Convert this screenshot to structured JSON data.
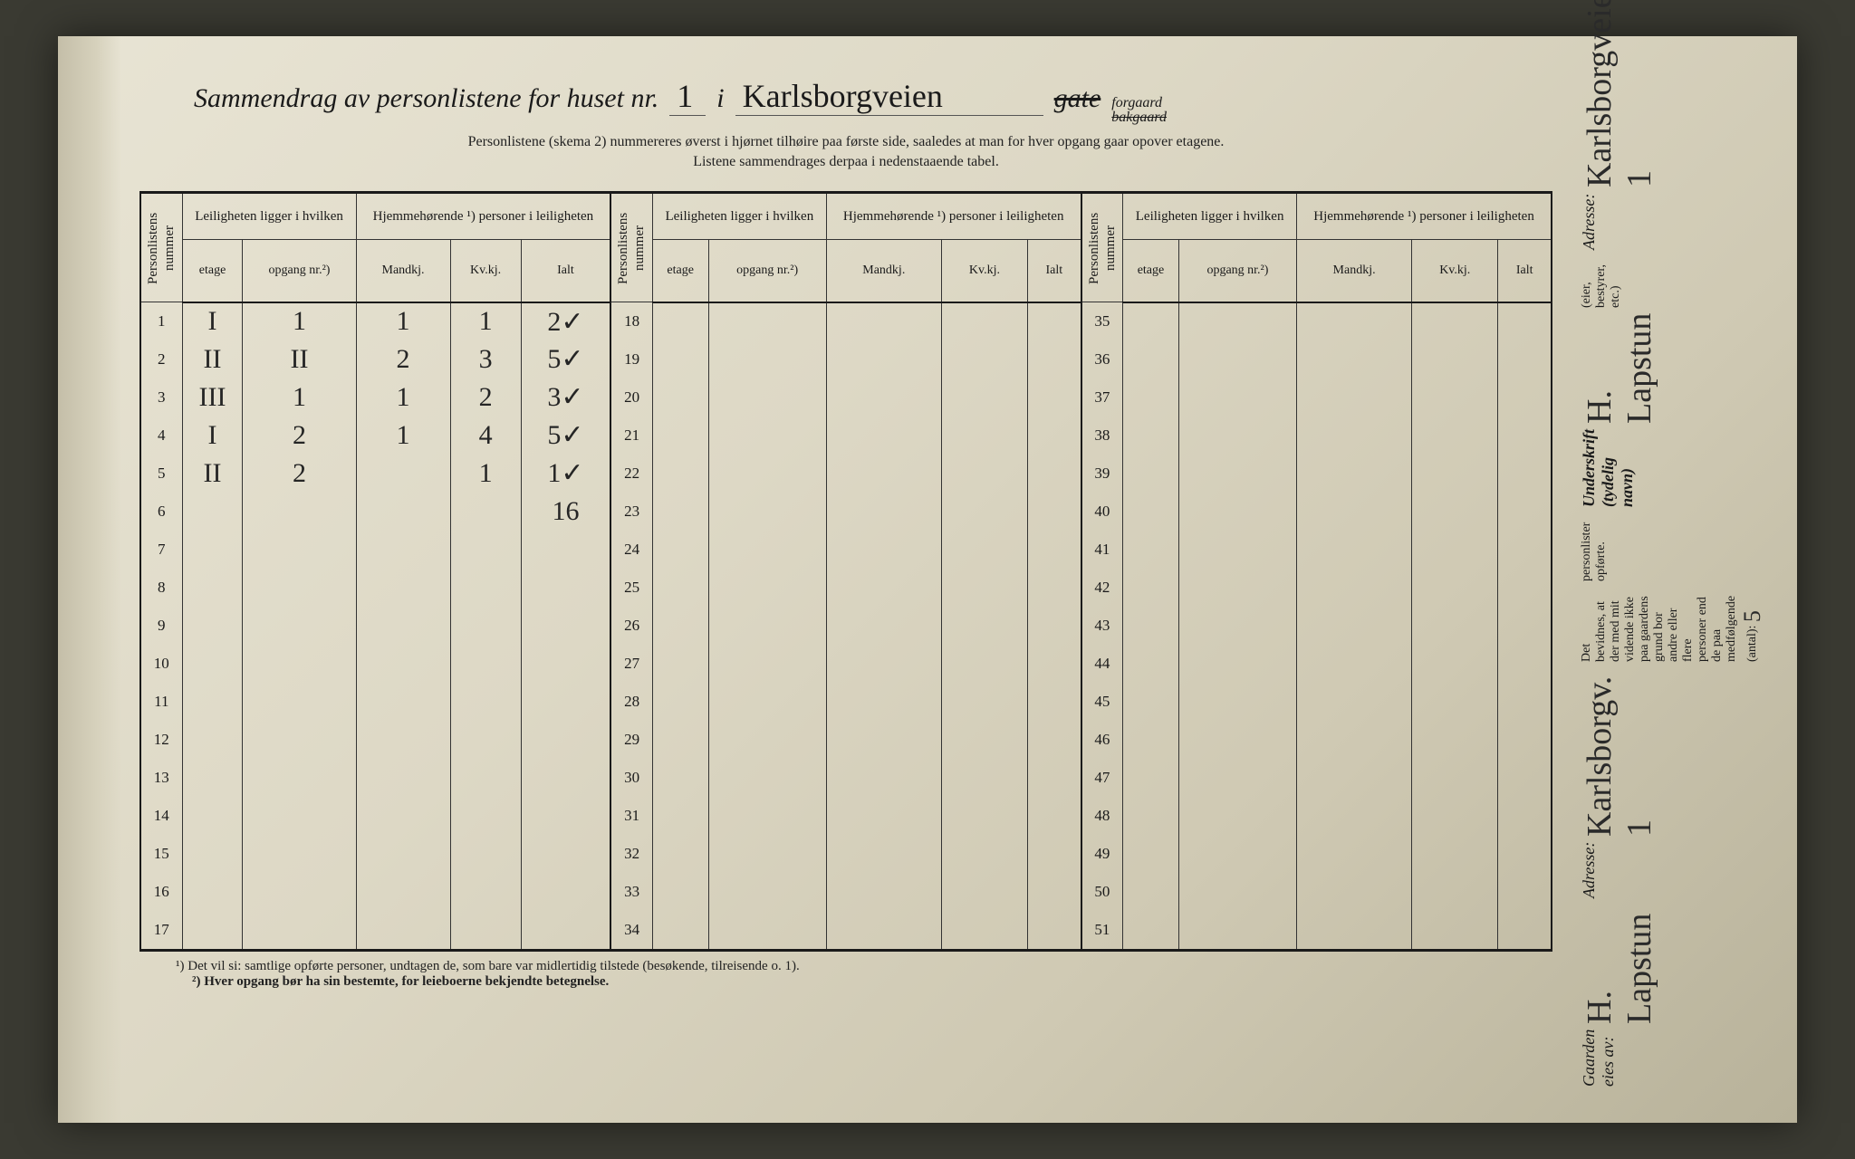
{
  "title": {
    "prefix": "Sammendrag av personlistene for huset nr.",
    "house_nr": "1",
    "i": "i",
    "street": "Karlsborgveien",
    "gate_strike": "gate",
    "forgaard": "forgaard",
    "bakgaard": "bakgaard"
  },
  "subtitle": {
    "line1": "Personlistene (skema 2) nummereres øverst i hjørnet tilhøire paa første side, saaledes at man for hver opgang gaar opover etagene.",
    "line2": "Listene sammendrages derpaa i nedenstaaende tabel."
  },
  "headers": {
    "personlistens_nummer": "Personlistens nummer",
    "leiligheten": "Leiligheten ligger i hvilken",
    "hjemmehorende": "Hjemmehørende ¹) personer i leiligheten",
    "etage": "etage",
    "opgang": "opgang nr.²)",
    "mandkj": "Mandkj.",
    "kvkj": "Kv.kj.",
    "ialt": "Ialt"
  },
  "rows": [
    {
      "n": 1,
      "et": "I",
      "op": "1",
      "m": "1",
      "k": "1",
      "i": "2✓"
    },
    {
      "n": 2,
      "et": "II",
      "op": "II",
      "m": "2",
      "k": "3",
      "i": "5✓"
    },
    {
      "n": 3,
      "et": "III",
      "op": "1",
      "m": "1",
      "k": "2",
      "i": "3✓"
    },
    {
      "n": 4,
      "et": "I",
      "op": "2",
      "m": "1",
      "k": "4",
      "i": "5✓"
    },
    {
      "n": 5,
      "et": "II",
      "op": "2",
      "m": "",
      "k": "1",
      "i": "1✓"
    },
    {
      "n": 6,
      "et": "",
      "op": "",
      "m": "",
      "k": "",
      "i": "16"
    },
    {
      "n": 7
    },
    {
      "n": 8
    },
    {
      "n": 9
    },
    {
      "n": 10
    },
    {
      "n": 11
    },
    {
      "n": 12
    },
    {
      "n": 13
    },
    {
      "n": 14
    },
    {
      "n": 15
    },
    {
      "n": 16
    },
    {
      "n": 17
    }
  ],
  "footnotes": {
    "f1": "¹)  Det vil si: samtlige opførte personer, undtagen de, som bare var midlertidig tilstede (besøkende, tilreisende o. 1).",
    "f2": "²)  Hver opgang bør ha sin bestemte, for leieboerne bekjendte betegnelse."
  },
  "side": {
    "gaarden_eies_av": "Gaarden eies av:",
    "owner_name": "H. Lapstun",
    "adresse_label": "Adresse:",
    "owner_adresse": "Karlsborgv. 1",
    "bevidnes": "Det bevidnes, at der med mit vidende ikke paa gaardens grund bor andre eller flere personer end de paa medfølgende (antal):",
    "antal": "5",
    "personlister": "personlister opførte.",
    "underskrift_label": "Underskrift (tydelig navn)",
    "eier_note": "(eier, bestyrer, etc.)",
    "signature": "H. Lapstun",
    "sign_adresse": "Karlsborgveien 1"
  }
}
